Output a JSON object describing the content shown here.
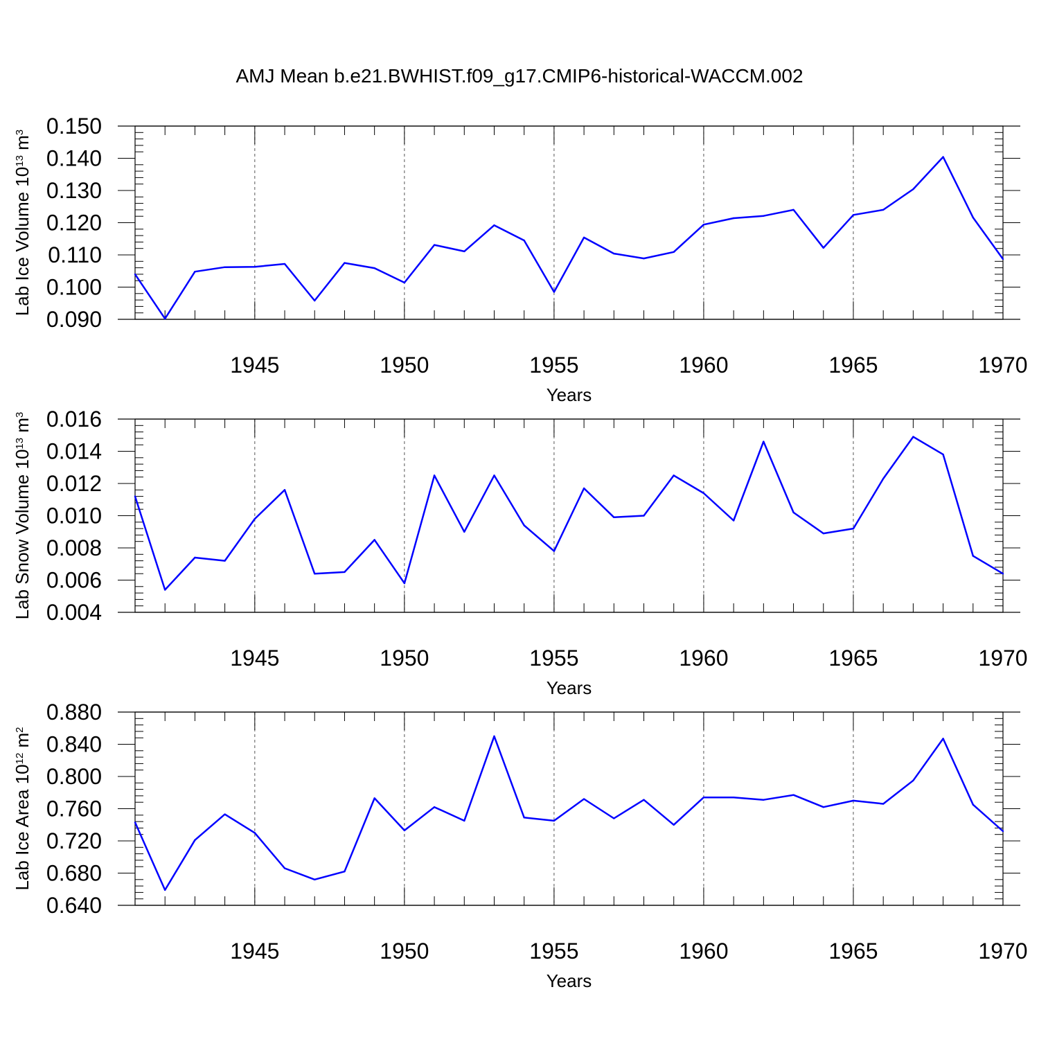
{
  "figure": {
    "title": "AMJ Mean b.e21.BWHIST.f09_g17.CMIP6-historical-WACCM.002"
  },
  "colors": {
    "line": "#0000ff",
    "axis": "#000000",
    "gridline": "#555555"
  },
  "chart_data": [
    {
      "type": "line",
      "ylabel": {
        "text": "Lab Ice Volume 10",
        "exponent": "13",
        "unit": " m",
        "unit_exponent": "3"
      },
      "xlabel": "Years",
      "xlim": [
        1941,
        1970
      ],
      "ylim": [
        0.09,
        0.15
      ],
      "y_ticks": [
        "0.090",
        "0.100",
        "0.110",
        "0.120",
        "0.130",
        "0.140",
        "0.150"
      ],
      "x_tick_labels": [
        "1945",
        "1950",
        "1955",
        "1960",
        "1965",
        "1970"
      ],
      "grid": "vertical dashed at labeled years",
      "series": [
        {
          "x": [
            1941,
            1942,
            1943,
            1944,
            1945,
            1946,
            1947,
            1948,
            1949,
            1950,
            1951,
            1952,
            1953,
            1954,
            1955,
            1956,
            1957,
            1958,
            1959,
            1960,
            1961,
            1962,
            1963,
            1964,
            1965,
            1966,
            1967,
            1968,
            1969,
            1970
          ],
          "values": [
            0.104,
            0.0902,
            0.1048,
            0.1062,
            0.1063,
            0.1072,
            0.0958,
            0.1075,
            0.1059,
            0.1014,
            0.1131,
            0.1111,
            0.1192,
            0.1145,
            0.0985,
            0.1154,
            0.1104,
            0.1089,
            0.1109,
            0.1194,
            0.1214,
            0.1221,
            0.124,
            0.1122,
            0.1224,
            0.124,
            0.1304,
            0.1404,
            0.1216,
            0.1087
          ]
        }
      ]
    },
    {
      "type": "line",
      "ylabel": {
        "text": "Lab Snow Volume 10",
        "exponent": "13",
        "unit": " m",
        "unit_exponent": "3"
      },
      "xlabel": "Years",
      "xlim": [
        1941,
        1970
      ],
      "ylim": [
        0.004,
        0.016
      ],
      "y_ticks": [
        "0.004",
        "0.006",
        "0.008",
        "0.010",
        "0.012",
        "0.014",
        "0.016"
      ],
      "x_tick_labels": [
        "1945",
        "1950",
        "1955",
        "1960",
        "1965",
        "1970"
      ],
      "grid": "vertical dashed at labeled years",
      "series": [
        {
          "x": [
            1941,
            1942,
            1943,
            1944,
            1945,
            1946,
            1947,
            1948,
            1949,
            1950,
            1951,
            1952,
            1953,
            1954,
            1955,
            1956,
            1957,
            1958,
            1959,
            1960,
            1961,
            1962,
            1963,
            1964,
            1965,
            1966,
            1967,
            1968,
            1969,
            1970
          ],
          "values": [
            0.0112,
            0.0054,
            0.0074,
            0.0072,
            0.0098,
            0.0116,
            0.0064,
            0.0065,
            0.0085,
            0.0058,
            0.0125,
            0.009,
            0.0125,
            0.0094,
            0.0078,
            0.0117,
            0.0099,
            0.01,
            0.0125,
            0.0114,
            0.0097,
            0.0146,
            0.0102,
            0.0089,
            0.0092,
            0.0123,
            0.0149,
            0.0138,
            0.0075,
            0.0064
          ]
        }
      ]
    },
    {
      "type": "line",
      "ylabel": {
        "text": "Lab Ice Area 10",
        "exponent": "12",
        "unit": " m",
        "unit_exponent": "2"
      },
      "xlabel": "Years",
      "xlim": [
        1941,
        1970
      ],
      "ylim": [
        0.64,
        0.88
      ],
      "y_ticks": [
        "0.640",
        "0.680",
        "0.720",
        "0.760",
        "0.800",
        "0.840",
        "0.880"
      ],
      "x_tick_labels": [
        "1945",
        "1950",
        "1955",
        "1960",
        "1965",
        "1970"
      ],
      "grid": "vertical dashed at labeled years",
      "series": [
        {
          "x": [
            1941,
            1942,
            1943,
            1944,
            1945,
            1946,
            1947,
            1948,
            1949,
            1950,
            1951,
            1952,
            1953,
            1954,
            1955,
            1956,
            1957,
            1958,
            1959,
            1960,
            1961,
            1962,
            1963,
            1964,
            1965,
            1966,
            1967,
            1968,
            1969,
            1970
          ],
          "values": [
            0.743,
            0.659,
            0.721,
            0.753,
            0.73,
            0.686,
            0.672,
            0.682,
            0.773,
            0.733,
            0.762,
            0.745,
            0.85,
            0.749,
            0.745,
            0.772,
            0.748,
            0.771,
            0.74,
            0.774,
            0.774,
            0.771,
            0.777,
            0.762,
            0.77,
            0.766,
            0.795,
            0.847,
            0.765,
            0.732
          ]
        }
      ]
    }
  ]
}
